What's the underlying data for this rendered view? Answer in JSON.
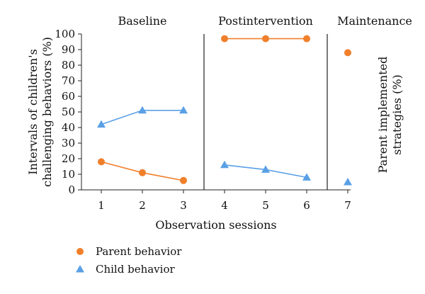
{
  "chart_data": {
    "type": "line",
    "phases": [
      {
        "label": "Baseline",
        "sessions": [
          1,
          2,
          3
        ]
      },
      {
        "label": "Postintervention",
        "sessions": [
          4,
          5,
          6
        ]
      },
      {
        "label": "Maintenance",
        "sessions": [
          7
        ]
      }
    ],
    "phase_change_after_sessions": [
      3.5,
      6.5
    ],
    "x": [
      1,
      2,
      3,
      4,
      5,
      6,
      7
    ],
    "xlabel": "Observation sessions",
    "ylabel_left": "Intervals of children's challenging behaviors (%)",
    "ylabel_right": "Parent implemented strategies (%)",
    "ylim": [
      0,
      100
    ],
    "yticks": [
      0,
      10,
      20,
      30,
      40,
      50,
      60,
      70,
      80,
      90,
      100
    ],
    "grid": false,
    "legend_position": "bottom-left",
    "series": [
      {
        "name": "Parent behavior",
        "marker": "circle",
        "color": "#F07F2B",
        "values": [
          18,
          11,
          6,
          97,
          97,
          97,
          88
        ]
      },
      {
        "name": "Child behavior",
        "marker": "triangle",
        "color": "#5AA0E6",
        "values": [
          42,
          51,
          51,
          16,
          13,
          8,
          5
        ]
      }
    ]
  }
}
